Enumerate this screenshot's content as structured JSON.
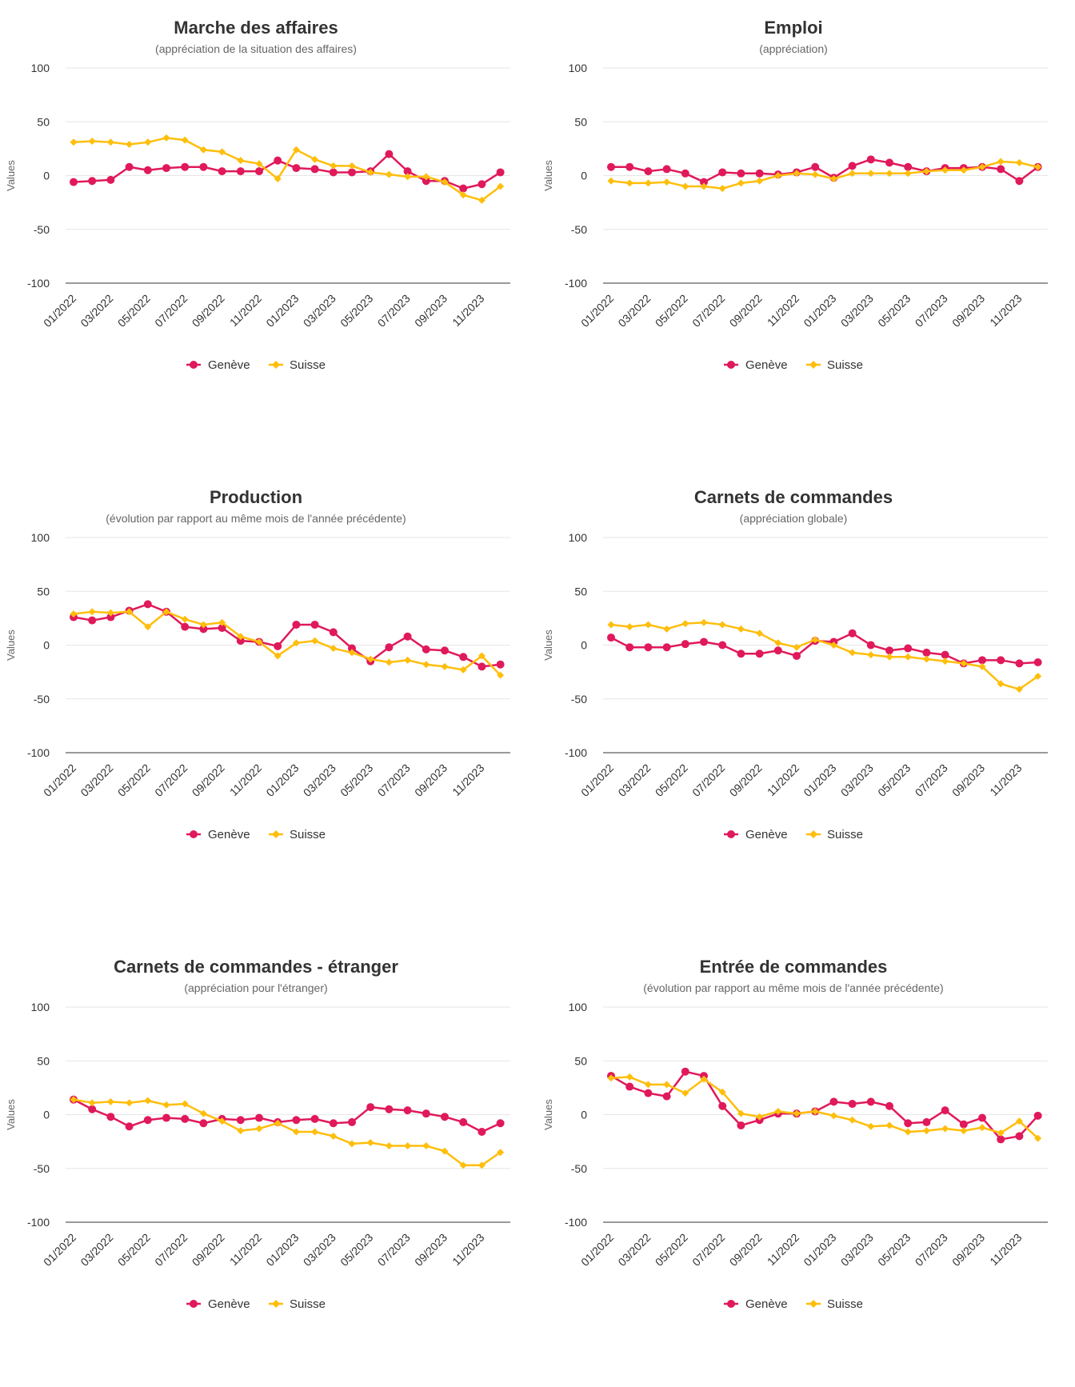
{
  "colors": {
    "geneve": "#E0195A",
    "suisse": "#FFBE0B",
    "grid": "#e6e6e6",
    "axis": "#333333"
  },
  "chart_data": [
    {
      "type": "line",
      "title": "Marche des affaires",
      "subtitle": "(appréciation de la situation des affaires)",
      "ylabel": "Values",
      "ylim": [
        -100,
        100
      ],
      "yticks": [
        "100",
        "50",
        "0",
        "-50",
        "-100"
      ],
      "x": [
        "01/2022",
        "02/2022",
        "03/2022",
        "04/2022",
        "05/2022",
        "06/2022",
        "07/2022",
        "08/2022",
        "09/2022",
        "10/2022",
        "11/2022",
        "12/2022",
        "01/2023",
        "02/2023",
        "03/2023",
        "04/2023",
        "05/2023",
        "06/2023",
        "07/2023",
        "08/2023",
        "09/2023",
        "10/2023",
        "11/2023",
        "12/2023"
      ],
      "xtick_labels": [
        "01/2022",
        "03/2022",
        "05/2022",
        "07/2022",
        "09/2022",
        "11/2022",
        "01/2023",
        "03/2023",
        "05/2023",
        "07/2023",
        "09/2023",
        "11/2023"
      ],
      "legend": "bottom-center",
      "series": [
        {
          "name": "Genève",
          "marker": "circle",
          "values": [
            -6,
            -5,
            -4,
            8,
            5,
            7,
            8,
            8,
            4,
            4,
            4,
            14,
            7,
            6,
            3,
            3,
            4,
            20,
            4,
            -5,
            -5,
            -12,
            -8,
            3
          ]
        },
        {
          "name": "Suisse",
          "marker": "diamond",
          "values": [
            31,
            32,
            31,
            29,
            31,
            35,
            33,
            24,
            22,
            14,
            11,
            -3,
            24,
            15,
            9,
            9,
            3,
            1,
            -1,
            -1,
            -6,
            -18,
            -23,
            -10
          ]
        }
      ]
    },
    {
      "type": "line",
      "title": "Emploi",
      "subtitle": "(appréciation)",
      "ylabel": "Values",
      "ylim": [
        -100,
        100
      ],
      "yticks": [
        "100",
        "50",
        "0",
        "-50",
        "-100"
      ],
      "x": [
        "01/2022",
        "02/2022",
        "03/2022",
        "04/2022",
        "05/2022",
        "06/2022",
        "07/2022",
        "08/2022",
        "09/2022",
        "10/2022",
        "11/2022",
        "12/2022",
        "01/2023",
        "02/2023",
        "03/2023",
        "04/2023",
        "05/2023",
        "06/2023",
        "07/2023",
        "08/2023",
        "09/2023",
        "10/2023",
        "11/2023",
        "12/2023"
      ],
      "xtick_labels": [
        "01/2022",
        "03/2022",
        "05/2022",
        "07/2022",
        "09/2022",
        "11/2022",
        "01/2023",
        "03/2023",
        "05/2023",
        "07/2023",
        "09/2023",
        "11/2023"
      ],
      "legend": "bottom-center",
      "series": [
        {
          "name": "Genève",
          "marker": "circle",
          "values": [
            8,
            8,
            4,
            6,
            2,
            -6,
            3,
            2,
            2,
            1,
            3,
            8,
            -2,
            9,
            15,
            12,
            8,
            4,
            7,
            7,
            8,
            6,
            -5,
            8
          ]
        },
        {
          "name": "Suisse",
          "marker": "diamond",
          "values": [
            -5,
            -7,
            -7,
            -6,
            -10,
            -10,
            -12,
            -7,
            -5,
            0,
            2,
            1,
            -3,
            2,
            2,
            2,
            2,
            4,
            5,
            5,
            8,
            13,
            12,
            8
          ]
        }
      ]
    },
    {
      "type": "line",
      "title": "Production",
      "subtitle": "(évolution par rapport au même mois de l'année précédente)",
      "ylabel": "Values",
      "ylim": [
        -100,
        100
      ],
      "yticks": [
        "100",
        "50",
        "0",
        "-50",
        "-100"
      ],
      "x": [
        "01/2022",
        "02/2022",
        "03/2022",
        "04/2022",
        "05/2022",
        "06/2022",
        "07/2022",
        "08/2022",
        "09/2022",
        "10/2022",
        "11/2022",
        "12/2022",
        "01/2023",
        "02/2023",
        "03/2023",
        "04/2023",
        "05/2023",
        "06/2023",
        "07/2023",
        "08/2023",
        "09/2023",
        "10/2023",
        "11/2023",
        "12/2023"
      ],
      "xtick_labels": [
        "01/2022",
        "03/2022",
        "05/2022",
        "07/2022",
        "09/2022",
        "11/2022",
        "01/2023",
        "03/2023",
        "05/2023",
        "07/2023",
        "09/2023",
        "11/2023"
      ],
      "legend": "bottom-center",
      "series": [
        {
          "name": "Genève",
          "marker": "circle",
          "values": [
            26,
            23,
            26,
            32,
            38,
            31,
            17,
            15,
            16,
            4,
            3,
            -1,
            19,
            19,
            12,
            -3,
            -15,
            -2,
            8,
            -4,
            -5,
            -11,
            -20,
            -18
          ]
        },
        {
          "name": "Suisse",
          "marker": "diamond",
          "values": [
            29,
            31,
            30,
            31,
            17,
            31,
            24,
            19,
            21,
            8,
            3,
            -10,
            2,
            4,
            -3,
            -7,
            -13,
            -16,
            -14,
            -18,
            -20,
            -23,
            -10,
            -28
          ]
        }
      ]
    },
    {
      "type": "line",
      "title": "Carnets de commandes",
      "subtitle": "(appréciation globale)",
      "ylabel": "Values",
      "ylim": [
        -100,
        100
      ],
      "yticks": [
        "100",
        "50",
        "0",
        "-50",
        "-100"
      ],
      "x": [
        "01/2022",
        "02/2022",
        "03/2022",
        "04/2022",
        "05/2022",
        "06/2022",
        "07/2022",
        "08/2022",
        "09/2022",
        "10/2022",
        "11/2022",
        "12/2022",
        "01/2023",
        "02/2023",
        "03/2023",
        "04/2023",
        "05/2023",
        "06/2023",
        "07/2023",
        "08/2023",
        "09/2023",
        "10/2023",
        "11/2023",
        "12/2023"
      ],
      "xtick_labels": [
        "01/2022",
        "03/2022",
        "05/2022",
        "07/2022",
        "09/2022",
        "11/2022",
        "01/2023",
        "03/2023",
        "05/2023",
        "07/2023",
        "09/2023",
        "11/2023"
      ],
      "legend": "bottom-center",
      "series": [
        {
          "name": "Genève",
          "marker": "circle",
          "values": [
            7,
            -2,
            -2,
            -2,
            1,
            3,
            0,
            -8,
            -8,
            -5,
            -10,
            4,
            3,
            11,
            0,
            -5,
            -3,
            -7,
            -9,
            -17,
            -14,
            -14,
            -17,
            -16
          ]
        },
        {
          "name": "Suisse",
          "marker": "diamond",
          "values": [
            19,
            17,
            19,
            15,
            20,
            21,
            19,
            15,
            11,
            2,
            -2,
            5,
            0,
            -7,
            -9,
            -11,
            -11,
            -13,
            -15,
            -17,
            -20,
            -36,
            -41,
            -29
          ]
        }
      ]
    },
    {
      "type": "line",
      "title": "Carnets de commandes - étranger",
      "subtitle": "(appréciation pour l'étranger)",
      "ylabel": "Values",
      "ylim": [
        -100,
        100
      ],
      "yticks": [
        "100",
        "50",
        "0",
        "-50",
        "-100"
      ],
      "x": [
        "01/2022",
        "02/2022",
        "03/2022",
        "04/2022",
        "05/2022",
        "06/2022",
        "07/2022",
        "08/2022",
        "09/2022",
        "10/2022",
        "11/2022",
        "12/2022",
        "01/2023",
        "02/2023",
        "03/2023",
        "04/2023",
        "05/2023",
        "06/2023",
        "07/2023",
        "08/2023",
        "09/2023",
        "10/2023",
        "11/2023",
        "12/2023"
      ],
      "xtick_labels": [
        "01/2022",
        "03/2022",
        "05/2022",
        "07/2022",
        "09/2022",
        "11/2022",
        "01/2023",
        "03/2023",
        "05/2023",
        "07/2023",
        "09/2023",
        "11/2023"
      ],
      "legend": "bottom-center",
      "series": [
        {
          "name": "Genève",
          "marker": "circle",
          "values": [
            14,
            5,
            -2,
            -11,
            -5,
            -3,
            -4,
            -8,
            -4,
            -5,
            -3,
            -7,
            -5,
            -4,
            -8,
            -7,
            7,
            5,
            4,
            1,
            -2,
            -7,
            -16,
            -8
          ]
        },
        {
          "name": "Suisse",
          "marker": "diamond",
          "values": [
            14,
            11,
            12,
            11,
            13,
            9,
            10,
            1,
            -6,
            -15,
            -13,
            -8,
            -16,
            -16,
            -20,
            -27,
            -26,
            -29,
            -29,
            -29,
            -34,
            -47,
            -47,
            -35
          ]
        }
      ]
    },
    {
      "type": "line",
      "title": "Entrée de commandes",
      "subtitle": "(évolution par rapport au même mois de l'année précédente)",
      "ylabel": "Values",
      "ylim": [
        -100,
        100
      ],
      "yticks": [
        "100",
        "50",
        "0",
        "-50",
        "-100"
      ],
      "x": [
        "01/2022",
        "02/2022",
        "03/2022",
        "04/2022",
        "05/2022",
        "06/2022",
        "07/2022",
        "08/2022",
        "09/2022",
        "10/2022",
        "11/2022",
        "12/2022",
        "01/2023",
        "02/2023",
        "03/2023",
        "04/2023",
        "05/2023",
        "06/2023",
        "07/2023",
        "08/2023",
        "09/2023",
        "10/2023",
        "11/2023",
        "12/2023"
      ],
      "xtick_labels": [
        "01/2022",
        "03/2022",
        "05/2022",
        "07/2022",
        "09/2022",
        "11/2022",
        "01/2023",
        "03/2023",
        "05/2023",
        "07/2023",
        "09/2023",
        "11/2023"
      ],
      "legend": "bottom-center",
      "series": [
        {
          "name": "Genève",
          "marker": "circle",
          "values": [
            36,
            26,
            20,
            17,
            40,
            36,
            8,
            -10,
            -5,
            1,
            1,
            3,
            12,
            10,
            12,
            8,
            -8,
            -7,
            4,
            -9,
            -3,
            -23,
            -20,
            -1
          ]
        },
        {
          "name": "Suisse",
          "marker": "diamond",
          "values": [
            34,
            35,
            28,
            28,
            20,
            33,
            21,
            1,
            -2,
            3,
            1,
            3,
            -1,
            -5,
            -11,
            -10,
            -16,
            -15,
            -13,
            -15,
            -12,
            -17,
            -6,
            -22
          ]
        }
      ]
    }
  ]
}
